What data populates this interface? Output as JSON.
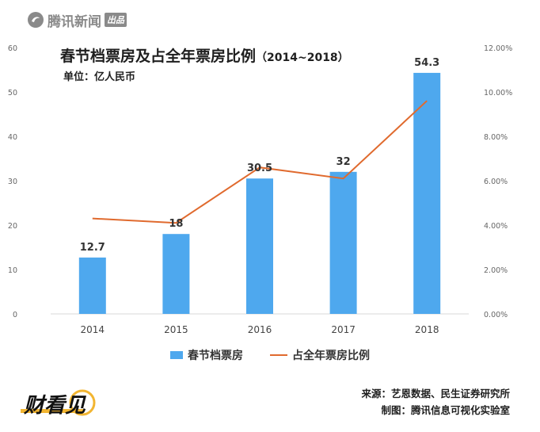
{
  "brand": {
    "name": "腾讯新闻",
    "tag": "出品"
  },
  "header": {
    "title": "春节档票房及占全年票房比例",
    "title_paren": "（2014~2018）",
    "unit": "单位：亿人民币"
  },
  "chart_data": {
    "type": "bar",
    "title": "春节档票房及占全年票房比例（2014~2018）",
    "categories": [
      "2014",
      "2015",
      "2016",
      "2017",
      "2018"
    ],
    "series": [
      {
        "name": "春节档票房",
        "type": "bar",
        "axis": "left",
        "color": "#4ea8ee",
        "values": [
          12.7,
          18,
          30.5,
          32,
          54.3
        ],
        "labels": [
          "12.7",
          "18",
          "30.5",
          "32",
          "54.3"
        ]
      },
      {
        "name": "占全年票房比例",
        "type": "line",
        "axis": "right",
        "color": "#e06a2e",
        "values": [
          4.3,
          4.1,
          6.6,
          6.1,
          9.6
        ]
      }
    ],
    "left_axis": {
      "ticks": [
        "0",
        "10",
        "20",
        "30",
        "40",
        "50",
        "60"
      ],
      "ylim": [
        0,
        60
      ]
    },
    "right_axis": {
      "ticks": [
        "0.00%",
        "2.00%",
        "4.00%",
        "6.00%",
        "8.00%",
        "10.00%",
        "12.00%"
      ],
      "ylim": [
        0,
        12
      ]
    },
    "grid": false,
    "legend_position": "bottom"
  },
  "legend": {
    "bar": "春节档票房",
    "line": "占全年票房比例"
  },
  "footer": {
    "logo_text": "财看见",
    "source": "来源：艺恩数据、民生证券研究所",
    "maker": "制图：腾讯信息可视化实验室"
  }
}
